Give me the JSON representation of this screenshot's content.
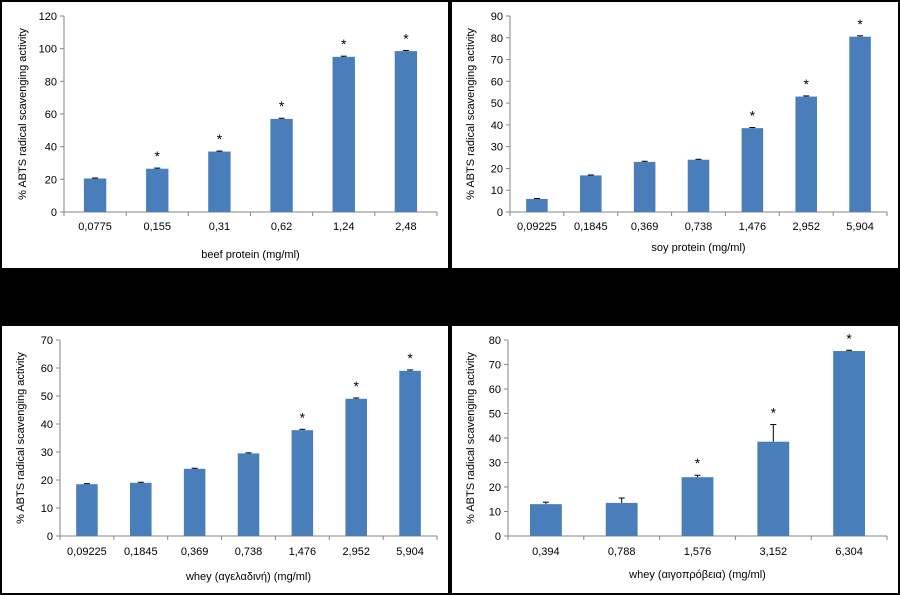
{
  "chart_data": [
    {
      "type": "bar",
      "ylabel": "% ABTS radical scavenging activity",
      "xlabel": "beef protein (mg/ml)",
      "ylim": [
        0,
        120
      ],
      "yticks": [
        "0",
        "20",
        "40",
        "60",
        "80",
        "100",
        "120"
      ],
      "categories": [
        "0,0775",
        "0,155",
        "0,31",
        "0,62",
        "1,24",
        "2,48"
      ],
      "values": [
        20.5,
        26.5,
        37,
        57,
        95,
        98.5
      ],
      "errors": [
        0.3,
        0.4,
        0.3,
        0.4,
        0.4,
        0.4
      ],
      "significant": [
        false,
        true,
        true,
        true,
        true,
        true
      ],
      "marker": "*",
      "color": "#4a7ebb"
    },
    {
      "type": "bar",
      "ylabel": "% ABTS radical scavenging activity",
      "xlabel": "soy protein (mg/ml)",
      "ylim": [
        0,
        90
      ],
      "yticks": [
        "0",
        "10",
        "20",
        "30",
        "40",
        "50",
        "60",
        "70",
        "80",
        "90"
      ],
      "categories": [
        "0,09225",
        "0,1845",
        "0,369",
        "0,738",
        "1,476",
        "2,952",
        "5,904"
      ],
      "values": [
        6,
        16.8,
        23,
        24,
        38.5,
        53,
        80.5
      ],
      "errors": [
        0.2,
        0.2,
        0.3,
        0.2,
        0.3,
        0.3,
        0.4
      ],
      "significant": [
        false,
        false,
        false,
        false,
        true,
        true,
        true
      ],
      "marker": "*",
      "color": "#4a7ebb"
    },
    {
      "type": "bar",
      "ylabel": "% ABTS radical scavenging activity",
      "xlabel": "whey (αγελαδινή) (mg/ml)",
      "ylim": [
        0,
        70
      ],
      "yticks": [
        "0",
        "10",
        "20",
        "30",
        "40",
        "50",
        "60",
        "70"
      ],
      "categories": [
        "0,09225",
        "0,1845",
        "0,369",
        "0,738",
        "1,476",
        "2,952",
        "5,904"
      ],
      "values": [
        18.5,
        19,
        24,
        29.5,
        37.8,
        49,
        59
      ],
      "errors": [
        0.2,
        0.2,
        0.2,
        0.2,
        0.3,
        0.3,
        0.3
      ],
      "significant": [
        false,
        false,
        false,
        false,
        true,
        true,
        true
      ],
      "marker": "*",
      "color": "#4a7ebb"
    },
    {
      "type": "bar",
      "ylabel": "% ABTS radical scavenging activity",
      "xlabel": "whey (αιγοπρόβεια) (mg/ml)",
      "ylim": [
        0,
        80
      ],
      "yticks": [
        "0",
        "10",
        "20",
        "30",
        "40",
        "50",
        "60",
        "70",
        "80"
      ],
      "categories": [
        "0,394",
        "0,788",
        "1,576",
        "3,152",
        "6,304"
      ],
      "values": [
        13,
        13.5,
        24,
        38.5,
        75.5
      ],
      "errors": [
        0.8,
        2,
        0.8,
        7,
        0.3
      ],
      "significant": [
        false,
        false,
        true,
        true,
        true
      ],
      "marker": "*",
      "color": "#4a7ebb"
    }
  ]
}
